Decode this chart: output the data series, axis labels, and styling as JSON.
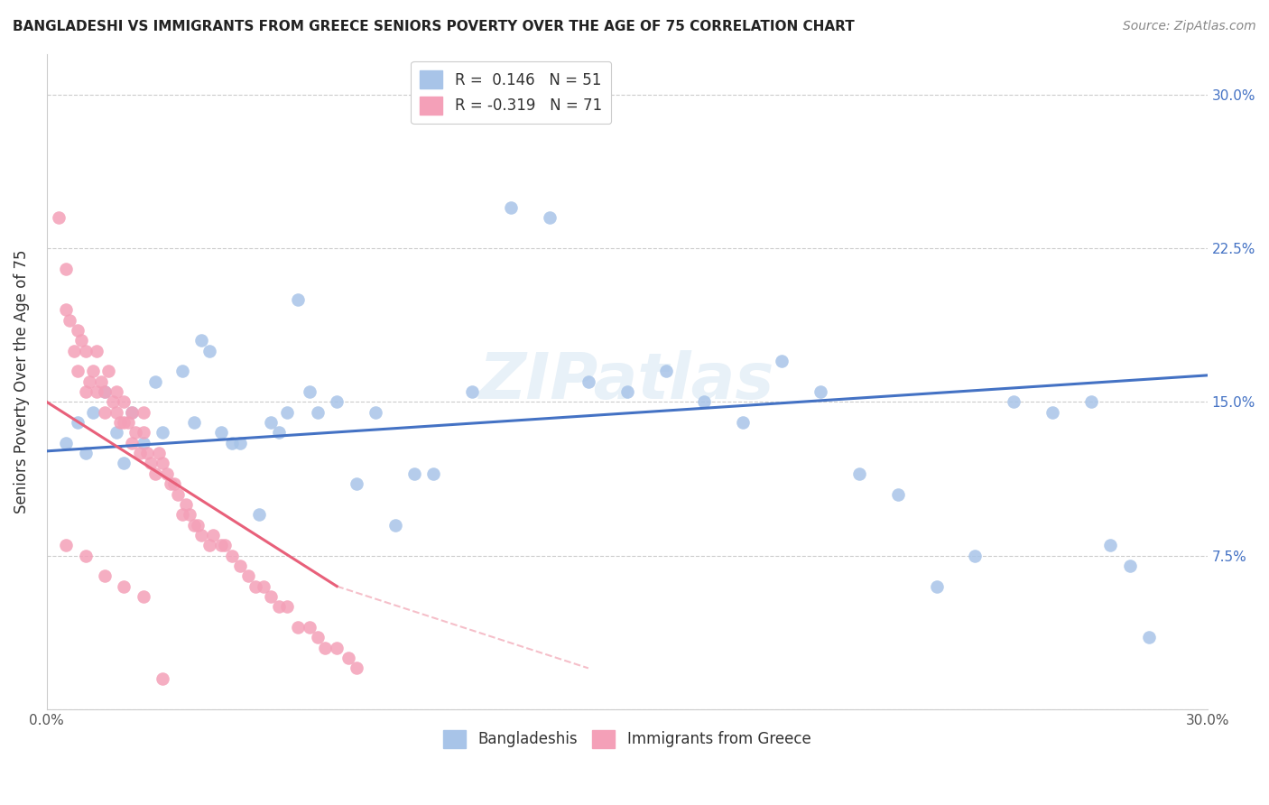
{
  "title": "BANGLADESHI VS IMMIGRANTS FROM GREECE SENIORS POVERTY OVER THE AGE OF 75 CORRELATION CHART",
  "source": "Source: ZipAtlas.com",
  "ylabel": "Seniors Poverty Over the Age of 75",
  "xlim": [
    0.0,
    0.3
  ],
  "ylim": [
    0.0,
    0.32
  ],
  "legend_blue_label": "R =  0.146   N = 51",
  "legend_pink_label": "R = -0.319   N = 71",
  "legend_blue_label_display": "Bangladeshis",
  "legend_pink_label_display": "Immigrants from Greece",
  "blue_color": "#a8c4e8",
  "pink_color": "#f4a0b8",
  "blue_line_color": "#4472c4",
  "pink_line_color": "#e8607a",
  "watermark": "ZIPatlas",
  "blue_x": [
    0.005,
    0.008,
    0.01,
    0.012,
    0.015,
    0.018,
    0.02,
    0.022,
    0.025,
    0.028,
    0.03,
    0.035,
    0.038,
    0.04,
    0.042,
    0.045,
    0.048,
    0.05,
    0.055,
    0.058,
    0.06,
    0.062,
    0.065,
    0.068,
    0.07,
    0.075,
    0.08,
    0.085,
    0.09,
    0.095,
    0.1,
    0.11,
    0.12,
    0.13,
    0.14,
    0.15,
    0.16,
    0.17,
    0.18,
    0.19,
    0.2,
    0.21,
    0.22,
    0.23,
    0.24,
    0.25,
    0.26,
    0.27,
    0.275,
    0.28,
    0.285
  ],
  "blue_y": [
    0.13,
    0.14,
    0.125,
    0.145,
    0.155,
    0.135,
    0.12,
    0.145,
    0.13,
    0.16,
    0.135,
    0.165,
    0.14,
    0.18,
    0.175,
    0.135,
    0.13,
    0.13,
    0.095,
    0.14,
    0.135,
    0.145,
    0.2,
    0.155,
    0.145,
    0.15,
    0.11,
    0.145,
    0.09,
    0.115,
    0.115,
    0.155,
    0.245,
    0.24,
    0.16,
    0.155,
    0.165,
    0.15,
    0.14,
    0.17,
    0.155,
    0.115,
    0.105,
    0.06,
    0.075,
    0.15,
    0.145,
    0.15,
    0.08,
    0.07,
    0.035
  ],
  "pink_x": [
    0.003,
    0.005,
    0.005,
    0.006,
    0.007,
    0.008,
    0.008,
    0.009,
    0.01,
    0.01,
    0.011,
    0.012,
    0.013,
    0.013,
    0.014,
    0.015,
    0.015,
    0.016,
    0.017,
    0.018,
    0.018,
    0.019,
    0.02,
    0.02,
    0.021,
    0.022,
    0.022,
    0.023,
    0.024,
    0.025,
    0.025,
    0.026,
    0.027,
    0.028,
    0.029,
    0.03,
    0.031,
    0.032,
    0.033,
    0.034,
    0.035,
    0.036,
    0.037,
    0.038,
    0.039,
    0.04,
    0.042,
    0.043,
    0.045,
    0.046,
    0.048,
    0.05,
    0.052,
    0.054,
    0.056,
    0.058,
    0.06,
    0.062,
    0.065,
    0.068,
    0.07,
    0.072,
    0.075,
    0.078,
    0.08,
    0.005,
    0.01,
    0.015,
    0.02,
    0.025,
    0.03
  ],
  "pink_y": [
    0.24,
    0.215,
    0.195,
    0.19,
    0.175,
    0.185,
    0.165,
    0.18,
    0.175,
    0.155,
    0.16,
    0.165,
    0.155,
    0.175,
    0.16,
    0.155,
    0.145,
    0.165,
    0.15,
    0.145,
    0.155,
    0.14,
    0.14,
    0.15,
    0.14,
    0.145,
    0.13,
    0.135,
    0.125,
    0.135,
    0.145,
    0.125,
    0.12,
    0.115,
    0.125,
    0.12,
    0.115,
    0.11,
    0.11,
    0.105,
    0.095,
    0.1,
    0.095,
    0.09,
    0.09,
    0.085,
    0.08,
    0.085,
    0.08,
    0.08,
    0.075,
    0.07,
    0.065,
    0.06,
    0.06,
    0.055,
    0.05,
    0.05,
    0.04,
    0.04,
    0.035,
    0.03,
    0.03,
    0.025,
    0.02,
    0.08,
    0.075,
    0.065,
    0.06,
    0.055,
    0.015
  ]
}
